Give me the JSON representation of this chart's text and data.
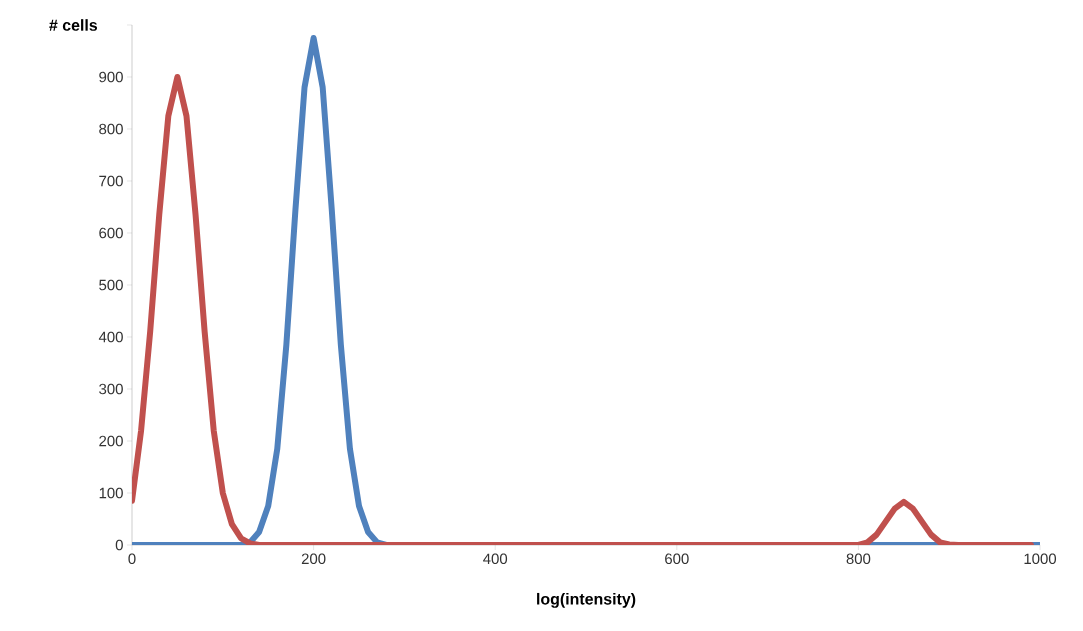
{
  "chart_data": {
    "type": "line",
    "xlabel": "log(intensity)",
    "ylabel": "# cells",
    "xlim": [
      0,
      1000
    ],
    "ylim": [
      0,
      1000
    ],
    "xticks": [
      0,
      200,
      400,
      600,
      800,
      1000
    ],
    "yticks": [
      0,
      100,
      200,
      300,
      400,
      500,
      600,
      700,
      800,
      900,
      {
        "value": 1000,
        "label": null
      }
    ],
    "grid": false,
    "marker": "none",
    "line_style": "solid",
    "series": [
      {
        "color": "#4f81bd",
        "x": [
          0,
          120,
          130,
          140,
          150,
          160,
          170,
          180,
          190,
          200,
          210,
          220,
          230,
          240,
          250,
          260,
          270,
          280,
          1000
        ],
        "values": [
          0,
          0,
          5,
          25,
          75,
          185,
          385,
          645,
          880,
          975,
          880,
          645,
          385,
          185,
          75,
          25,
          5,
          0,
          0
        ]
      },
      {
        "color": "#c0504d",
        "x": [
          0,
          10,
          20,
          30,
          40,
          50,
          60,
          70,
          80,
          90,
          100,
          110,
          120,
          130,
          140,
          800,
          810,
          820,
          830,
          840,
          850,
          860,
          870,
          880,
          890,
          900,
          910,
          990
        ],
        "values": [
          85,
          220,
          410,
          635,
          825,
          900,
          825,
          635,
          410,
          220,
          100,
          40,
          13,
          3,
          0,
          0,
          5,
          20,
          45,
          70,
          83,
          70,
          45,
          20,
          5,
          1,
          0,
          0
        ]
      }
    ]
  }
}
